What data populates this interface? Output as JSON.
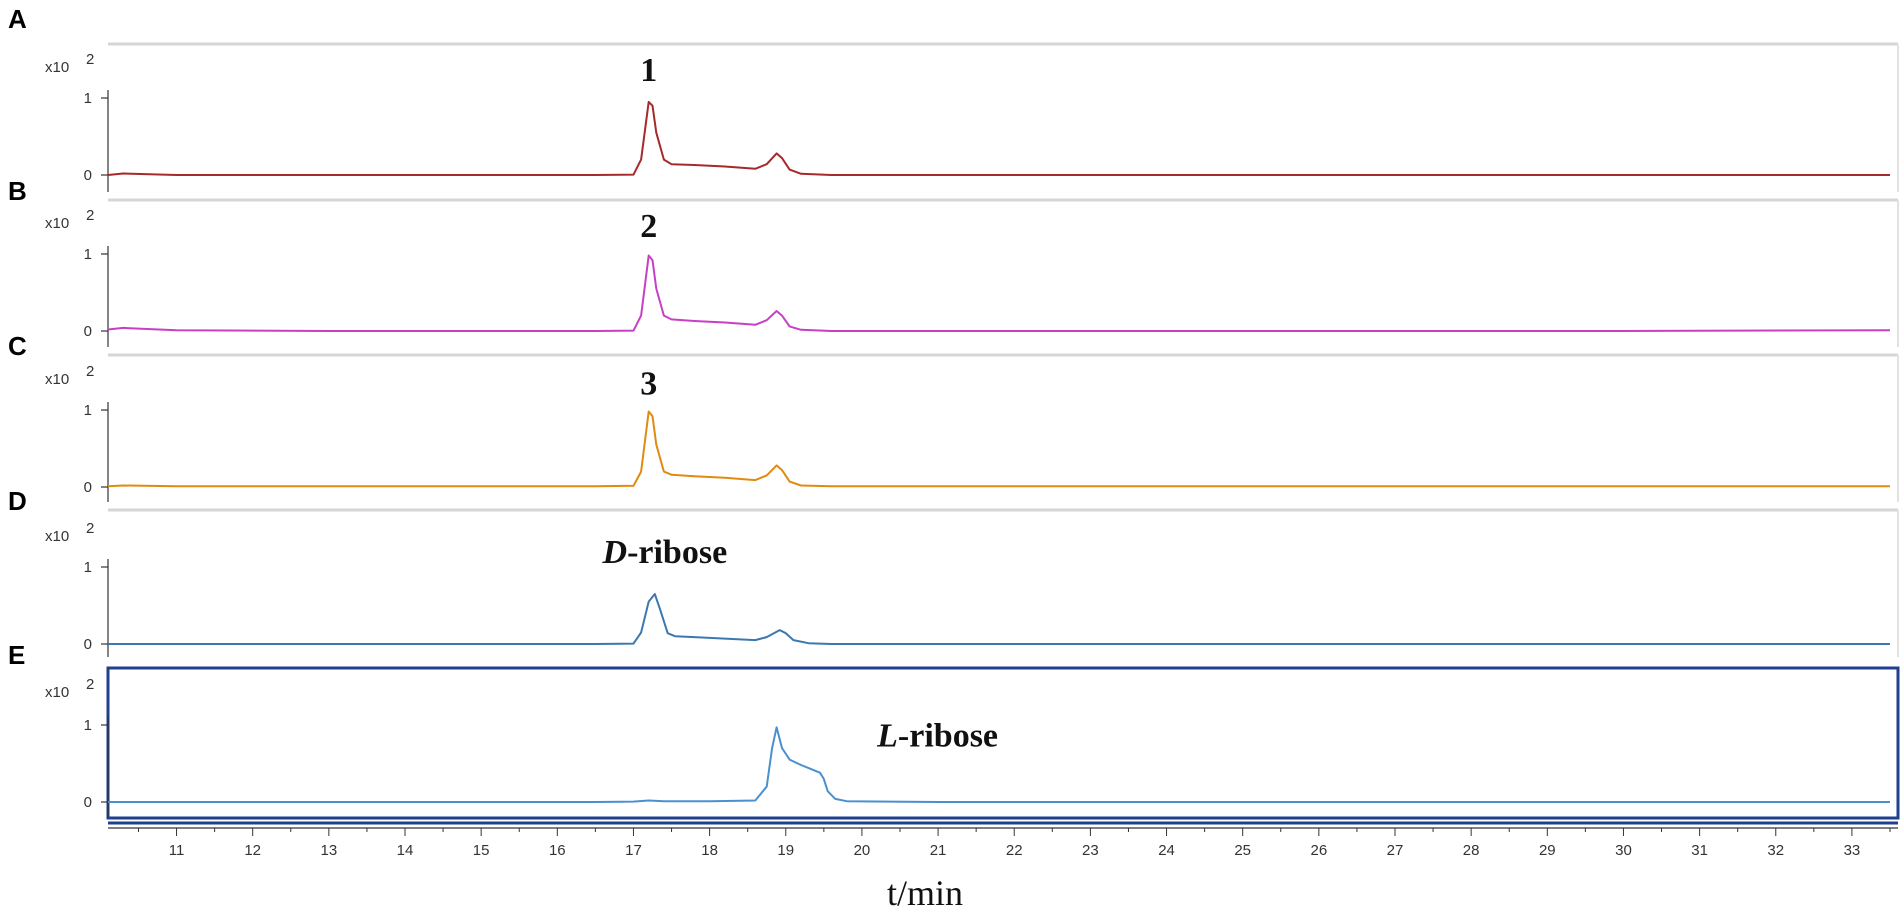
{
  "chart_data": {
    "type": "line",
    "x_axis": {
      "label": "t/min",
      "xlim": [
        10.1,
        33.5
      ],
      "ticks": [
        11,
        12,
        13,
        14,
        15,
        16,
        17,
        18,
        19,
        20,
        21,
        22,
        23,
        24,
        25,
        26,
        27,
        28,
        29,
        30,
        31,
        32,
        33
      ]
    },
    "panels": [
      {
        "letter": "A",
        "scale_label": "x10",
        "scale_exponent": "2",
        "y_ticks": [
          "1",
          "0"
        ],
        "ylim": [
          0,
          1
        ],
        "color": "#a52a2a",
        "peak_label": "1",
        "peak_label_italic": "",
        "peak_label_x": 17.2,
        "peak_label_y": 1.22,
        "series": {
          "x": [
            10.1,
            10.3,
            11,
            13,
            15,
            16.5,
            17.0,
            17.1,
            17.2,
            17.25,
            17.3,
            17.4,
            17.5,
            17.8,
            18.2,
            18.6,
            18.75,
            18.88,
            18.95,
            19.05,
            19.2,
            19.6,
            21,
            25,
            30,
            33.5
          ],
          "y": [
            0.0,
            0.02,
            0.0,
            0.0,
            0.0,
            0.0,
            0.005,
            0.2,
            0.95,
            0.9,
            0.55,
            0.2,
            0.14,
            0.13,
            0.11,
            0.08,
            0.14,
            0.28,
            0.22,
            0.07,
            0.015,
            0.0,
            0.0,
            0.0,
            0.0,
            0.0
          ]
        }
      },
      {
        "letter": "B",
        "scale_label": "x10",
        "scale_exponent": "2",
        "y_ticks": [
          "1",
          "0"
        ],
        "ylim": [
          0,
          1
        ],
        "color": "#c73fc7",
        "peak_label": "2",
        "peak_label_italic": "",
        "peak_label_x": 17.2,
        "peak_label_y": 1.22,
        "series": {
          "x": [
            10.1,
            10.3,
            11,
            13,
            15,
            16.5,
            17.0,
            17.1,
            17.2,
            17.25,
            17.3,
            17.4,
            17.5,
            17.8,
            18.2,
            18.6,
            18.75,
            18.88,
            18.95,
            19.05,
            19.2,
            19.6,
            21,
            25,
            30,
            33.5
          ],
          "y": [
            0.02,
            0.04,
            0.01,
            0.0,
            0.0,
            0.0,
            0.005,
            0.2,
            0.98,
            0.92,
            0.55,
            0.2,
            0.15,
            0.13,
            0.11,
            0.08,
            0.14,
            0.26,
            0.2,
            0.06,
            0.015,
            0.0,
            0.0,
            0.0,
            0.0,
            0.01
          ]
        }
      },
      {
        "letter": "C",
        "scale_label": "x10",
        "scale_exponent": "2",
        "y_ticks": [
          "1",
          "0"
        ],
        "ylim": [
          0,
          1
        ],
        "color": "#e08a10",
        "peak_label": "3",
        "peak_label_italic": "",
        "peak_label_x": 17.2,
        "peak_label_y": 1.2,
        "series": {
          "x": [
            10.1,
            10.3,
            11,
            13,
            15,
            16.5,
            17.0,
            17.1,
            17.2,
            17.25,
            17.3,
            17.4,
            17.5,
            17.8,
            18.2,
            18.6,
            18.75,
            18.88,
            18.95,
            19.05,
            19.2,
            19.6,
            21,
            25,
            30,
            33.5
          ],
          "y": [
            0.01,
            0.02,
            0.01,
            0.01,
            0.01,
            0.01,
            0.015,
            0.2,
            0.98,
            0.92,
            0.55,
            0.2,
            0.16,
            0.14,
            0.12,
            0.09,
            0.15,
            0.28,
            0.22,
            0.07,
            0.02,
            0.01,
            0.01,
            0.01,
            0.01,
            0.01
          ]
        }
      },
      {
        "letter": "D",
        "scale_label": "x10",
        "scale_exponent": "2",
        "y_ticks": [
          "1",
          "0"
        ],
        "ylim": [
          0,
          1
        ],
        "color": "#3a78b0",
        "peak_label": "-ribose",
        "peak_label_italic": "D",
        "peak_label_x": 17.25,
        "peak_label_y": 1.05,
        "series": {
          "x": [
            10.1,
            11,
            13,
            15,
            16.5,
            17.0,
            17.1,
            17.2,
            17.28,
            17.35,
            17.45,
            17.55,
            17.8,
            18.2,
            18.6,
            18.75,
            18.92,
            19.0,
            19.1,
            19.3,
            19.6,
            21,
            25,
            30,
            33.5
          ],
          "y": [
            0.0,
            0.0,
            0.0,
            0.0,
            0.0,
            0.005,
            0.15,
            0.55,
            0.65,
            0.45,
            0.14,
            0.1,
            0.09,
            0.07,
            0.05,
            0.09,
            0.18,
            0.14,
            0.05,
            0.01,
            0.0,
            0.0,
            0.0,
            0.0,
            0.0
          ]
        }
      },
      {
        "letter": "E",
        "scale_label": "x10",
        "scale_exponent": "2",
        "y_ticks": [
          "1",
          "0"
        ],
        "ylim": [
          0,
          1
        ],
        "color": "#4a90d0",
        "peak_label": "-ribose",
        "peak_label_italic": "L",
        "peak_label_x": 20.2,
        "peak_label_y": 0.72,
        "series": {
          "x": [
            10.1,
            13,
            16.5,
            17.0,
            17.2,
            17.4,
            18.0,
            18.6,
            18.75,
            18.82,
            18.88,
            18.95,
            19.05,
            19.2,
            19.3,
            19.4,
            19.45,
            19.5,
            19.55,
            19.65,
            19.8,
            21,
            25,
            30,
            33.5
          ],
          "y": [
            0.0,
            0.0,
            0.0,
            0.005,
            0.02,
            0.01,
            0.01,
            0.02,
            0.2,
            0.7,
            0.97,
            0.7,
            0.55,
            0.48,
            0.44,
            0.4,
            0.38,
            0.3,
            0.14,
            0.04,
            0.01,
            0.0,
            0.0,
            0.0,
            0.0
          ]
        }
      }
    ]
  }
}
